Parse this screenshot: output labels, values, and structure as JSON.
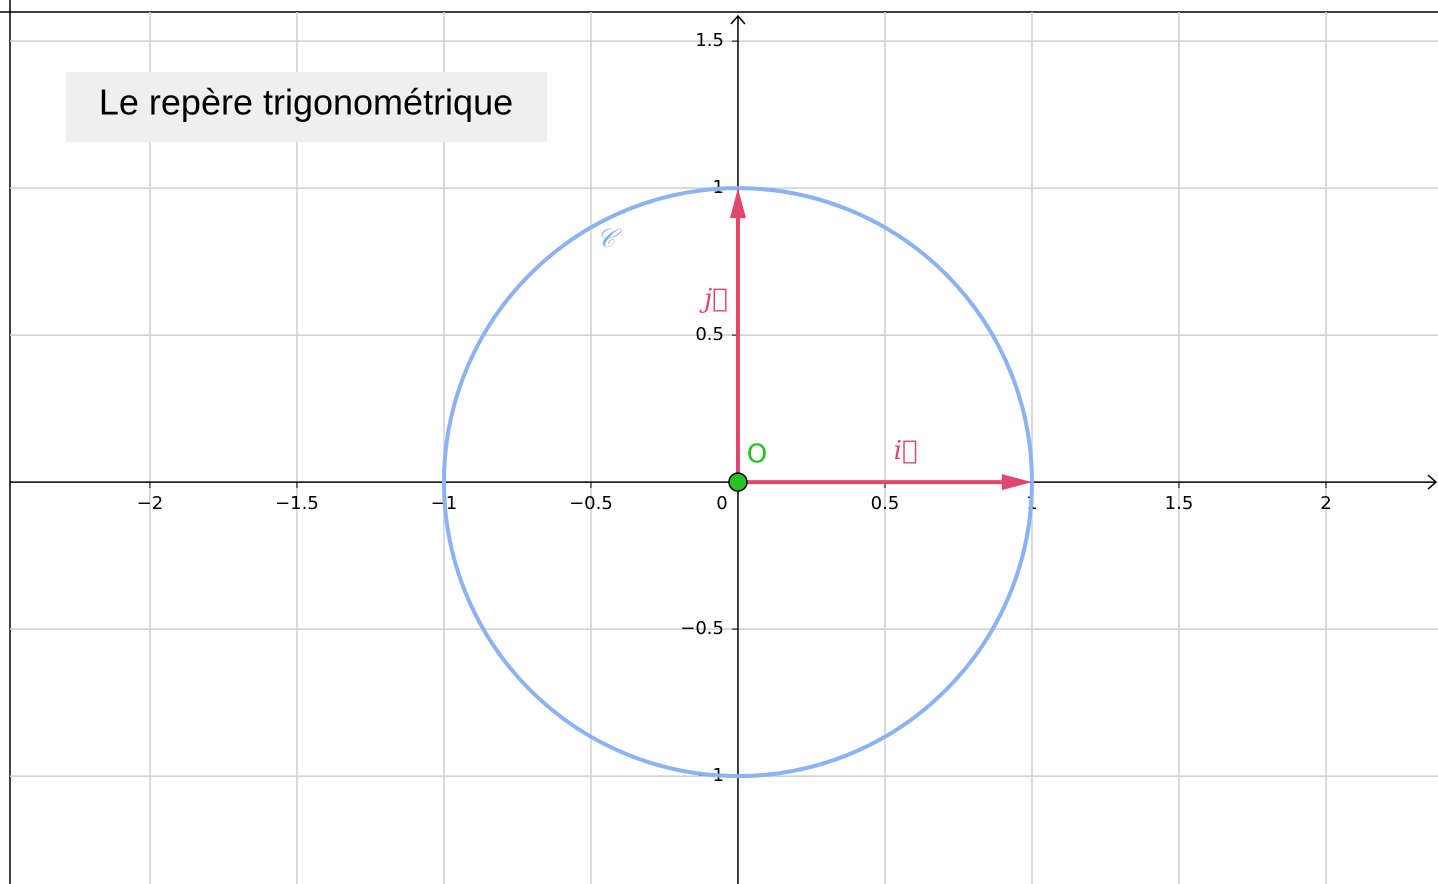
{
  "title": "Le repère trigonométrique",
  "axes": {
    "xlim": [
      -2.476,
      2.381
    ],
    "ylim": [
      -1.367,
      1.599
    ],
    "grid": true,
    "xticks": [
      {
        "value": -2,
        "label": "−2"
      },
      {
        "value": -1.5,
        "label": "−1.5"
      },
      {
        "value": -1,
        "label": "−1"
      },
      {
        "value": -0.5,
        "label": "−0.5"
      },
      0,
      0.5,
      1,
      1.5,
      2
    ],
    "yticks": [
      {
        "value": -1,
        "label": "−1"
      },
      {
        "value": -0.5,
        "label": "−0.5"
      },
      0.5,
      1,
      1.5
    ]
  },
  "circle": {
    "label": "𝒞",
    "center": [
      0,
      0
    ],
    "radius": 1,
    "color": "#8cb2f2"
  },
  "point": {
    "label": "O",
    "x": 0,
    "y": 0,
    "color": "#22c322"
  },
  "vectors": [
    {
      "label": "i⃗",
      "x": 1,
      "y": 0,
      "color": "#e2466d"
    },
    {
      "label": "j⃗",
      "x": 0,
      "y": 1,
      "color": "#e2466d"
    }
  ]
}
